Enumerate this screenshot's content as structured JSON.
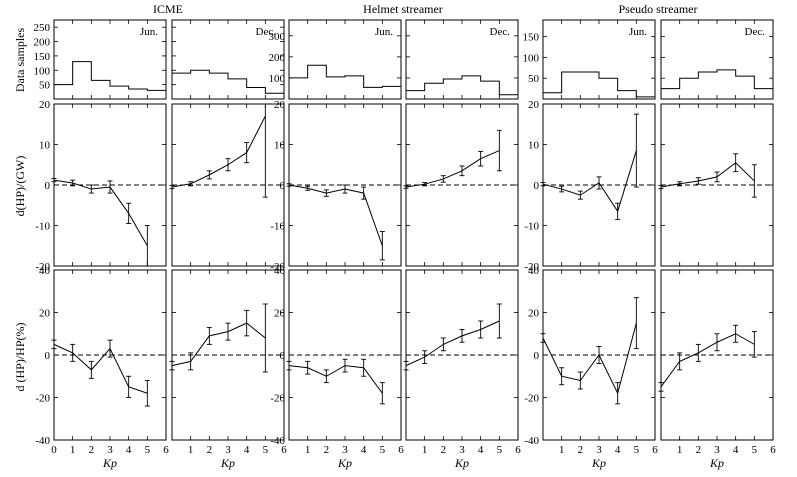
{
  "figure": {
    "column_titles": [
      "ICME",
      "Helmet streamer",
      "Pseudo streamer"
    ],
    "row_ylabels": [
      "Data samples",
      "d(HP)/(GW)",
      "d (HP)/HP(%)"
    ],
    "xlabel": "Kp",
    "x_ticks": [
      "0",
      "1",
      "2",
      "3",
      "4",
      "5",
      "6"
    ],
    "month_labels": [
      "Jun.",
      "Dec."
    ]
  },
  "chart_data": [
    {
      "type": "step",
      "column": "ICME",
      "month": "Jun.",
      "row": "Data samples",
      "x": [
        0,
        1,
        2,
        3,
        4,
        5
      ],
      "values": [
        50,
        130,
        65,
        45,
        35,
        30
      ],
      "ylim": [
        0,
        275
      ],
      "yticks": [
        "50",
        "100",
        "150",
        "200",
        "250"
      ]
    },
    {
      "type": "step",
      "column": "ICME",
      "month": "Dec.",
      "row": "Data samples",
      "x": [
        0,
        1,
        2,
        3,
        4,
        5
      ],
      "values": [
        90,
        100,
        90,
        70,
        40,
        20
      ],
      "ylim": [
        0,
        275
      ],
      "yticks": [
        "50",
        "100",
        "150",
        "200",
        "250"
      ]
    },
    {
      "type": "step",
      "column": "Helmet streamer",
      "month": "Jun.",
      "row": "Data samples",
      "x": [
        0,
        1,
        2,
        3,
        4,
        5
      ],
      "values": [
        100,
        160,
        105,
        110,
        55,
        60
      ],
      "ylim": [
        0,
        375
      ],
      "yticks": [
        "100",
        "200",
        "300"
      ]
    },
    {
      "type": "step",
      "column": "Helmet streamer",
      "month": "Dec.",
      "row": "Data samples",
      "x": [
        0,
        1,
        2,
        3,
        4,
        5
      ],
      "values": [
        40,
        75,
        95,
        110,
        85,
        20
      ],
      "ylim": [
        0,
        375
      ],
      "yticks": [
        "100",
        "200",
        "300"
      ]
    },
    {
      "type": "step",
      "column": "Pseudo streamer",
      "month": "Jun.",
      "row": "Data samples",
      "x": [
        0,
        1,
        2,
        3,
        4,
        5
      ],
      "values": [
        15,
        65,
        65,
        50,
        20,
        5
      ],
      "ylim": [
        0,
        190
      ],
      "yticks": [
        "50",
        "100",
        "150"
      ]
    },
    {
      "type": "step",
      "column": "Pseudo streamer",
      "month": "Dec.",
      "row": "Data samples",
      "x": [
        0,
        1,
        2,
        3,
        4,
        5
      ],
      "values": [
        25,
        50,
        65,
        70,
        55,
        25
      ],
      "ylim": [
        0,
        190
      ],
      "yticks": [
        "50",
        "100",
        "150"
      ]
    },
    {
      "type": "line",
      "column": "ICME",
      "month": "Jun.",
      "row": "d(HP)/(GW)",
      "x": [
        0,
        1,
        2,
        3,
        4,
        5
      ],
      "y": [
        1.2,
        0.5,
        -1.0,
        -0.5,
        -7.0,
        -15.0
      ],
      "err": [
        0.4,
        0.7,
        1.0,
        1.5,
        2.5,
        5.0
      ],
      "ylim": [
        -20,
        20
      ],
      "yticks": [
        "-20",
        "-10",
        "0",
        "10",
        "20"
      ]
    },
    {
      "type": "line",
      "column": "ICME",
      "month": "Dec.",
      "row": "d(HP)/(GW)",
      "x": [
        0,
        1,
        2,
        3,
        4,
        5
      ],
      "y": [
        -0.5,
        0.3,
        2.5,
        5.0,
        8.0,
        17.0
      ],
      "err": [
        0.4,
        0.5,
        1.0,
        1.5,
        2.5,
        20.0
      ],
      "ylim": [
        -20,
        20
      ],
      "yticks": [
        "-20",
        "-10",
        "0",
        "10",
        "20"
      ]
    },
    {
      "type": "line",
      "column": "Helmet streamer",
      "month": "Jun.",
      "row": "d(HP)/(GW)",
      "x": [
        0,
        1,
        2,
        3,
        4,
        5
      ],
      "y": [
        0,
        -0.8,
        -2.0,
        -1.0,
        -2.0,
        -15.0
      ],
      "err": [
        0.3,
        0.5,
        0.8,
        1.0,
        1.5,
        3.5
      ],
      "ylim": [
        -20,
        20
      ],
      "yticks": [
        "-20",
        "-10",
        "0",
        "10",
        "20"
      ]
    },
    {
      "type": "line",
      "column": "Helmet streamer",
      "month": "Dec.",
      "row": "d(HP)/(GW)",
      "x": [
        0,
        1,
        2,
        3,
        4,
        5
      ],
      "y": [
        -0.5,
        0.2,
        1.5,
        3.5,
        6.5,
        8.5
      ],
      "err": [
        0.3,
        0.4,
        0.8,
        1.2,
        1.8,
        5.0
      ],
      "ylim": [
        -20,
        20
      ],
      "yticks": [
        "-20",
        "-10",
        "0",
        "10",
        "20"
      ]
    },
    {
      "type": "line",
      "column": "Pseudo streamer",
      "month": "Jun.",
      "row": "d(HP)/(GW)",
      "x": [
        0,
        1,
        2,
        3,
        4,
        5
      ],
      "y": [
        0.2,
        -1.0,
        -2.5,
        0.5,
        -6.5,
        8.5
      ],
      "err": [
        0.4,
        0.7,
        1.0,
        1.5,
        2.0,
        9.0
      ],
      "ylim": [
        -20,
        20
      ],
      "yticks": [
        "-20",
        "-10",
        "0",
        "10",
        "20"
      ]
    },
    {
      "type": "line",
      "column": "Pseudo streamer",
      "month": "Dec.",
      "row": "d(HP)/(GW)",
      "x": [
        0,
        1,
        2,
        3,
        4,
        5
      ],
      "y": [
        -0.5,
        0.3,
        1.0,
        2.0,
        5.5,
        1.0
      ],
      "err": [
        0.4,
        0.5,
        0.8,
        1.2,
        2.2,
        4.0
      ],
      "ylim": [
        -20,
        20
      ],
      "yticks": [
        "-20",
        "-10",
        "0",
        "10",
        "20"
      ]
    },
    {
      "type": "line",
      "column": "ICME",
      "month": "Jun.",
      "row": "d (HP)/HP(%)",
      "x": [
        0,
        1,
        2,
        3,
        4,
        5
      ],
      "y": [
        5,
        1,
        -7,
        3,
        -15,
        -18
      ],
      "err": [
        2,
        4,
        4,
        4,
        5,
        6
      ],
      "ylim": [
        -40,
        40
      ],
      "yticks": [
        "-40",
        "-20",
        "0",
        "20",
        "40"
      ]
    },
    {
      "type": "line",
      "column": "ICME",
      "month": "Dec.",
      "row": "d (HP)/HP(%)",
      "x": [
        0,
        1,
        2,
        3,
        4,
        5
      ],
      "y": [
        -5,
        -3,
        9,
        11,
        15,
        8
      ],
      "err": [
        2,
        4,
        4,
        4,
        6,
        16
      ],
      "ylim": [
        -40,
        40
      ],
      "yticks": [
        "-40",
        "-20",
        "0",
        "20",
        "40"
      ]
    },
    {
      "type": "line",
      "column": "Helmet streamer",
      "month": "Jun.",
      "row": "d (HP)/HP(%)",
      "x": [
        0,
        1,
        2,
        3,
        4,
        5
      ],
      "y": [
        -5,
        -6,
        -10,
        -5,
        -6,
        -18
      ],
      "err": [
        2,
        3,
        3,
        3,
        4,
        5
      ],
      "ylim": [
        -40,
        40
      ],
      "yticks": [
        "-40",
        "-20",
        "0",
        "20",
        "40"
      ]
    },
    {
      "type": "line",
      "column": "Helmet streamer",
      "month": "Dec.",
      "row": "d (HP)/HP(%)",
      "x": [
        0,
        1,
        2,
        3,
        4,
        5
      ],
      "y": [
        -5,
        -1,
        5,
        9,
        12,
        16
      ],
      "err": [
        2,
        3,
        3,
        3,
        4,
        8
      ],
      "ylim": [
        -40,
        40
      ],
      "yticks": [
        "-40",
        "-20",
        "0",
        "20",
        "40"
      ]
    },
    {
      "type": "line",
      "column": "Pseudo streamer",
      "month": "Jun.",
      "row": "d (HP)/HP(%)",
      "x": [
        0,
        1,
        2,
        3,
        4,
        5
      ],
      "y": [
        8,
        -10,
        -12,
        0,
        -18,
        15
      ],
      "err": [
        2,
        4,
        4,
        4,
        5,
        12
      ],
      "ylim": [
        -40,
        40
      ],
      "yticks": [
        "-40",
        "-20",
        "0",
        "20",
        "40"
      ]
    },
    {
      "type": "line",
      "column": "Pseudo streamer",
      "month": "Dec.",
      "row": "d (HP)/HP(%)",
      "x": [
        0,
        1,
        2,
        3,
        4,
        5
      ],
      "y": [
        -15,
        -3,
        1,
        6,
        10,
        5
      ],
      "err": [
        2,
        4,
        4,
        4,
        4,
        6
      ],
      "ylim": [
        -40,
        40
      ],
      "yticks": [
        "-40",
        "-20",
        "0",
        "20",
        "40"
      ]
    }
  ]
}
